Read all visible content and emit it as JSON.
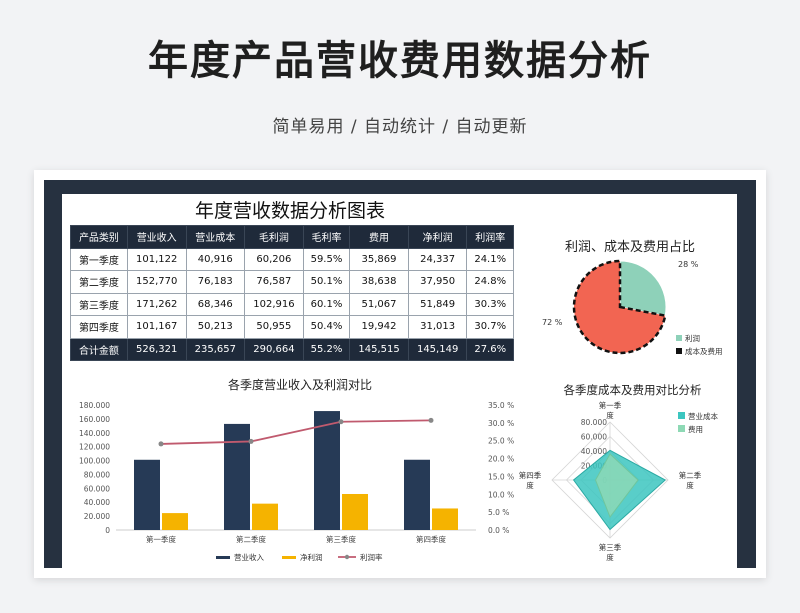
{
  "page": {
    "title": "年度产品营收费用数据分析",
    "subtitle": "简单易用 / 自动统计 / 自动更新"
  },
  "sheet": {
    "title": "年度营收数据分析图表"
  },
  "table": {
    "headers": [
      "产品类别",
      "营业收入",
      "营业成本",
      "毛利润",
      "毛利率",
      "费用",
      "净利润",
      "利润率"
    ],
    "rows": [
      [
        "第一季度",
        "101,122",
        "40,916",
        "60,206",
        "59.5%",
        "35,869",
        "24,337",
        "24.1%"
      ],
      [
        "第二季度",
        "152,770",
        "76,183",
        "76,587",
        "50.1%",
        "38,638",
        "37,950",
        "24.8%"
      ],
      [
        "第三季度",
        "171,262",
        "68,346",
        "102,916",
        "60.1%",
        "51,067",
        "51,849",
        "30.3%"
      ],
      [
        "第四季度",
        "101,167",
        "50,213",
        "50,955",
        "50.4%",
        "19,942",
        "31,013",
        "30.7%"
      ]
    ],
    "total": [
      "合计金额",
      "526,321",
      "235,657",
      "290,664",
      "55.2%",
      "145,515",
      "145,149",
      "27.6%"
    ]
  },
  "colors": {
    "navy": "#263a56",
    "orange": "#f5b300",
    "line": "#c05a6e",
    "pie_teal": "#8ed1b9",
    "pie_red": "#f26552",
    "radar_fill1": "#3cc6c0",
    "radar_fill2": "#8ed9b5"
  },
  "chart_data": [
    {
      "type": "pie",
      "title": "利润、成本及费用占比",
      "labels": [
        "利润",
        "成本及费用"
      ],
      "values": [
        28,
        72
      ],
      "value_labels": [
        "28 %",
        "72 %"
      ],
      "legend_position": "bottom-right"
    },
    {
      "type": "bar",
      "title": "各季度营业收入及利润对比",
      "categories": [
        "第一季度",
        "第二季度",
        "第三季度",
        "第四季度"
      ],
      "y_ticks": [
        "0",
        "20.000",
        "40.000",
        "60.000",
        "80.000",
        "100.000",
        "120.000",
        "140.000",
        "160.000",
        "180.000"
      ],
      "y2_ticks": [
        "0.0 %",
        "5.0 %",
        "10.0 %",
        "15.0 %",
        "20.0 %",
        "25.0 %",
        "30.0 %",
        "35.0 %"
      ],
      "ylim": [
        0,
        180000
      ],
      "y2lim": [
        0,
        35
      ],
      "series": [
        {
          "name": "营业收入",
          "kind": "bar",
          "values": [
            101122,
            152770,
            171262,
            101167
          ]
        },
        {
          "name": "净利润",
          "kind": "bar",
          "values": [
            24337,
            37950,
            51849,
            31013
          ]
        },
        {
          "name": "利润率",
          "kind": "line",
          "axis": "right",
          "values": [
            24.1,
            24.8,
            30.3,
            30.7
          ]
        }
      ],
      "legend_position": "bottom",
      "grid": false
    },
    {
      "type": "radar",
      "title": "各季度成本及费用对比分析",
      "axes": [
        "第一季度",
        "第二季度",
        "第三季度",
        "第四季度"
      ],
      "ticks": [
        "0",
        "20.000",
        "40.000",
        "60.000",
        "80.000"
      ],
      "rmax": 80000,
      "series": [
        {
          "name": "营业成本",
          "values": [
            40916,
            76183,
            68346,
            50213
          ]
        },
        {
          "name": "费用",
          "values": [
            35869,
            38638,
            51067,
            19942
          ]
        }
      ],
      "legend_position": "top-right"
    }
  ]
}
